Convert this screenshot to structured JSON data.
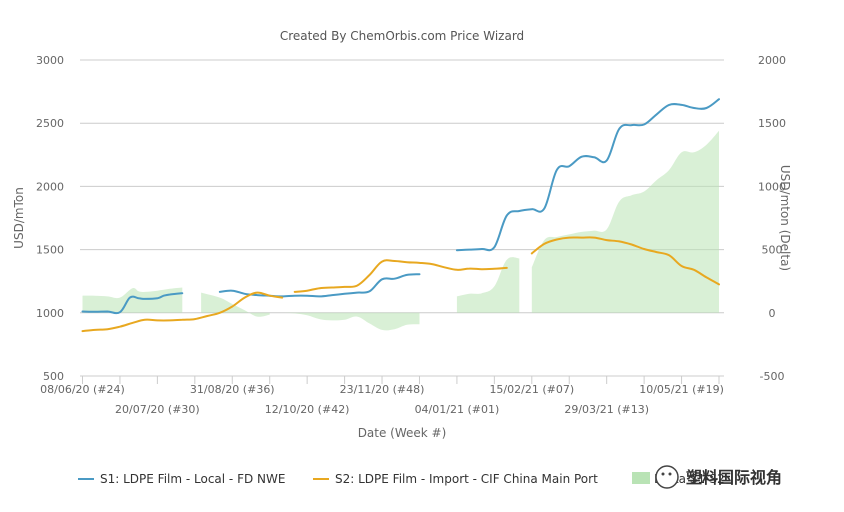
{
  "chart_data": {
    "type": "line",
    "title": "Created By ChemOrbis.com Price Wizard",
    "xlabel": "Date (Week #)",
    "ylabel_left": "USD/mTon",
    "ylabel_right": "USD/mton (Delta)",
    "ylim_left": [
      500,
      3000
    ],
    "ylim_right": [
      -500,
      2000
    ],
    "yticks_left": [
      500,
      1000,
      1500,
      2000,
      2500,
      3000
    ],
    "yticks_right": [
      -500,
      0,
      500,
      1000,
      1500,
      2000
    ],
    "grid": true,
    "legend_position": "bottom",
    "x_ticks": [
      {
        "week": 0,
        "label": "08/06/20 (#24)"
      },
      {
        "week": 6,
        "label": "20/07/20 (#30)"
      },
      {
        "week": 12,
        "label": "31/08/20 (#36)"
      },
      {
        "week": 18,
        "label": "12/10/20 (#42)"
      },
      {
        "week": 24,
        "label": "23/11/20 (#48)"
      },
      {
        "week": 30,
        "label": "04/01/21 (#01)"
      },
      {
        "week": 36,
        "label": "15/02/21 (#07)"
      },
      {
        "week": 42,
        "label": "29/03/21 (#13)"
      },
      {
        "week": 48,
        "label": "10/05/21 (#19)"
      }
    ],
    "x_range": [
      -0.2,
      51.4
    ],
    "series": [
      {
        "name": "S1: LDPE Film - Local - FD NWE",
        "color": "#4a9ac4",
        "axis": "left",
        "segments": [
          [
            [
              0,
              1010
            ],
            [
              1,
              1008
            ],
            [
              2,
              1010
            ],
            [
              3,
              1005
            ],
            [
              3.8,
              1120
            ],
            [
              4.5,
              1115
            ],
            [
              5,
              1110
            ],
            [
              6,
              1115
            ],
            [
              6.5,
              1135
            ],
            [
              7,
              1145
            ],
            [
              8,
              1155
            ]
          ],
          [
            [
              11,
              1165
            ],
            [
              12,
              1175
            ],
            [
              13,
              1150
            ],
            [
              14,
              1140
            ],
            [
              15,
              1135
            ],
            [
              16,
              1130
            ],
            [
              17,
              1135
            ],
            [
              18,
              1135
            ],
            [
              19,
              1130
            ],
            [
              20,
              1140
            ],
            [
              21,
              1150
            ],
            [
              22,
              1160
            ],
            [
              23,
              1170
            ],
            [
              24,
              1265
            ],
            [
              25,
              1270
            ],
            [
              26,
              1300
            ],
            [
              27,
              1305
            ]
          ],
          [
            [
              30,
              1495
            ],
            [
              31,
              1500
            ],
            [
              32,
              1505
            ],
            [
              33,
              1520
            ],
            [
              34,
              1770
            ],
            [
              35,
              1805
            ],
            [
              36,
              1820
            ],
            [
              37,
              1825
            ],
            [
              38,
              2130
            ],
            [
              39,
              2160
            ],
            [
              40,
              2235
            ],
            [
              41,
              2230
            ],
            [
              42,
              2205
            ],
            [
              43,
              2455
            ],
            [
              44,
              2485
            ],
            [
              45,
              2490
            ],
            [
              46,
              2570
            ],
            [
              47,
              2645
            ],
            [
              48,
              2645
            ],
            [
              49,
              2620
            ],
            [
              50,
              2620
            ],
            [
              51,
              2690
            ]
          ]
        ]
      },
      {
        "name": "S2: LDPE Film - Import - CIF China Main Port",
        "color": "#e8a820",
        "axis": "left",
        "segments": [
          [
            [
              0,
              855
            ],
            [
              1,
              865
            ],
            [
              2,
              870
            ],
            [
              3,
              890
            ],
            [
              4,
              920
            ],
            [
              5,
              945
            ],
            [
              6,
              940
            ],
            [
              7,
              940
            ],
            [
              8,
              945
            ],
            [
              9,
              950
            ],
            [
              10,
              975
            ],
            [
              11,
              1000
            ],
            [
              12,
              1050
            ],
            [
              13,
              1120
            ],
            [
              14,
              1160
            ],
            [
              15,
              1135
            ],
            [
              16,
              1120
            ]
          ],
          [
            [
              17,
              1165
            ],
            [
              18,
              1175
            ],
            [
              19,
              1195
            ],
            [
              20,
              1200
            ],
            [
              21,
              1205
            ],
            [
              22,
              1215
            ],
            [
              23,
              1300
            ],
            [
              24,
              1405
            ],
            [
              25,
              1410
            ],
            [
              26,
              1400
            ],
            [
              27,
              1395
            ],
            [
              28,
              1385
            ],
            [
              29,
              1360
            ],
            [
              30,
              1340
            ],
            [
              31,
              1350
            ],
            [
              32,
              1345
            ],
            [
              33,
              1348
            ],
            [
              34,
              1355
            ]
          ],
          [
            [
              36,
              1470
            ],
            [
              37,
              1545
            ],
            [
              38,
              1580
            ],
            [
              39,
              1595
            ],
            [
              40,
              1595
            ],
            [
              41,
              1595
            ],
            [
              42,
              1575
            ],
            [
              43,
              1565
            ],
            [
              44,
              1540
            ],
            [
              45,
              1505
            ],
            [
              46,
              1480
            ],
            [
              47,
              1455
            ],
            [
              48,
              1370
            ],
            [
              49,
              1340
            ],
            [
              50,
              1280
            ],
            [
              51,
              1225
            ]
          ]
        ]
      },
      {
        "name": "Delta S1-S2",
        "color": "#b9e3b5",
        "axis": "right",
        "kind": "area",
        "segments": [
          [
            [
              0,
              135
            ],
            [
              1,
              135
            ],
            [
              2,
              130
            ],
            [
              3,
              120
            ],
            [
              4,
              195
            ],
            [
              4.5,
              170
            ],
            [
              5,
              165
            ],
            [
              6,
              175
            ],
            [
              7,
              190
            ],
            [
              8,
              200
            ]
          ],
          [
            [
              9.5,
              160
            ],
            [
              11,
              120
            ],
            [
              12,
              70
            ],
            [
              13,
              20
            ],
            [
              14,
              -30
            ],
            [
              15,
              -15
            ]
          ],
          [
            [
              16,
              0
            ],
            [
              17,
              -5
            ],
            [
              18,
              -20
            ],
            [
              19,
              -50
            ],
            [
              20,
              -60
            ],
            [
              21,
              -55
            ],
            [
              22,
              -30
            ],
            [
              23,
              -85
            ],
            [
              24,
              -135
            ],
            [
              25,
              -130
            ],
            [
              26,
              -95
            ],
            [
              27,
              -90
            ]
          ],
          [
            [
              30,
              130
            ],
            [
              31,
              150
            ],
            [
              32,
              155
            ],
            [
              33,
              210
            ],
            [
              34,
              420
            ],
            [
              35,
              430
            ]
          ],
          [
            [
              36,
              360
            ],
            [
              37,
              575
            ],
            [
              38,
              600
            ],
            [
              39,
              620
            ],
            [
              40,
              640
            ],
            [
              41,
              650
            ],
            [
              42,
              660
            ],
            [
              43,
              880
            ],
            [
              44,
              930
            ],
            [
              45,
              960
            ],
            [
              46,
              1050
            ],
            [
              47,
              1130
            ],
            [
              48,
              1270
            ],
            [
              49,
              1270
            ],
            [
              50,
              1330
            ],
            [
              51,
              1440
            ]
          ]
        ]
      }
    ]
  },
  "watermark": "塑料国际视角"
}
